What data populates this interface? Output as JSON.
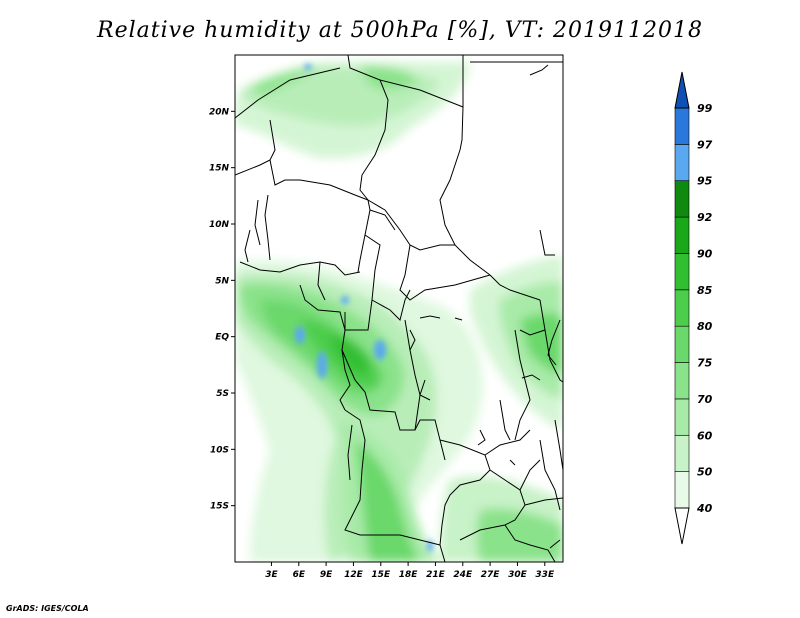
{
  "title": "Relative humidity at 500hPa [%], VT: 2019112018",
  "credit": "GrADS: IGES/COLA",
  "map": {
    "lon_range": [
      -1,
      35
    ],
    "lat_range": [
      -20,
      25
    ],
    "lat_ticks": [
      {
        "value": 20,
        "label": "20N"
      },
      {
        "value": 15,
        "label": "15N"
      },
      {
        "value": 10,
        "label": "10N"
      },
      {
        "value": 5,
        "label": "5N"
      },
      {
        "value": 0,
        "label": "EQ"
      },
      {
        "value": -5,
        "label": "5S"
      },
      {
        "value": -10,
        "label": "10S"
      },
      {
        "value": -15,
        "label": "15S"
      }
    ],
    "lon_ticks": [
      {
        "value": 3,
        "label": "3E"
      },
      {
        "value": 6,
        "label": "6E"
      },
      {
        "value": 9,
        "label": "9E"
      },
      {
        "value": 12,
        "label": "12E"
      },
      {
        "value": 15,
        "label": "15E"
      },
      {
        "value": 18,
        "label": "18E"
      },
      {
        "value": 21,
        "label": "21E"
      },
      {
        "value": 24,
        "label": "24E"
      },
      {
        "value": 27,
        "label": "27E"
      },
      {
        "value": 30,
        "label": "30E"
      },
      {
        "value": 33,
        "label": "33E"
      }
    ]
  },
  "colorbar": {
    "levels": [
      "40",
      "50",
      "60",
      "70",
      "75",
      "80",
      "85",
      "90",
      "92",
      "95",
      "97",
      "99"
    ],
    "colors": [
      "#ffffff",
      "#e8fbe8",
      "#c8f2c8",
      "#a8eaa8",
      "#8ae28a",
      "#6ad86a",
      "#4ccd4c",
      "#31bf31",
      "#1aa71a",
      "#0f8a0f",
      "#5aa8f0",
      "#2a78dc",
      "#1050b4"
    ]
  }
}
